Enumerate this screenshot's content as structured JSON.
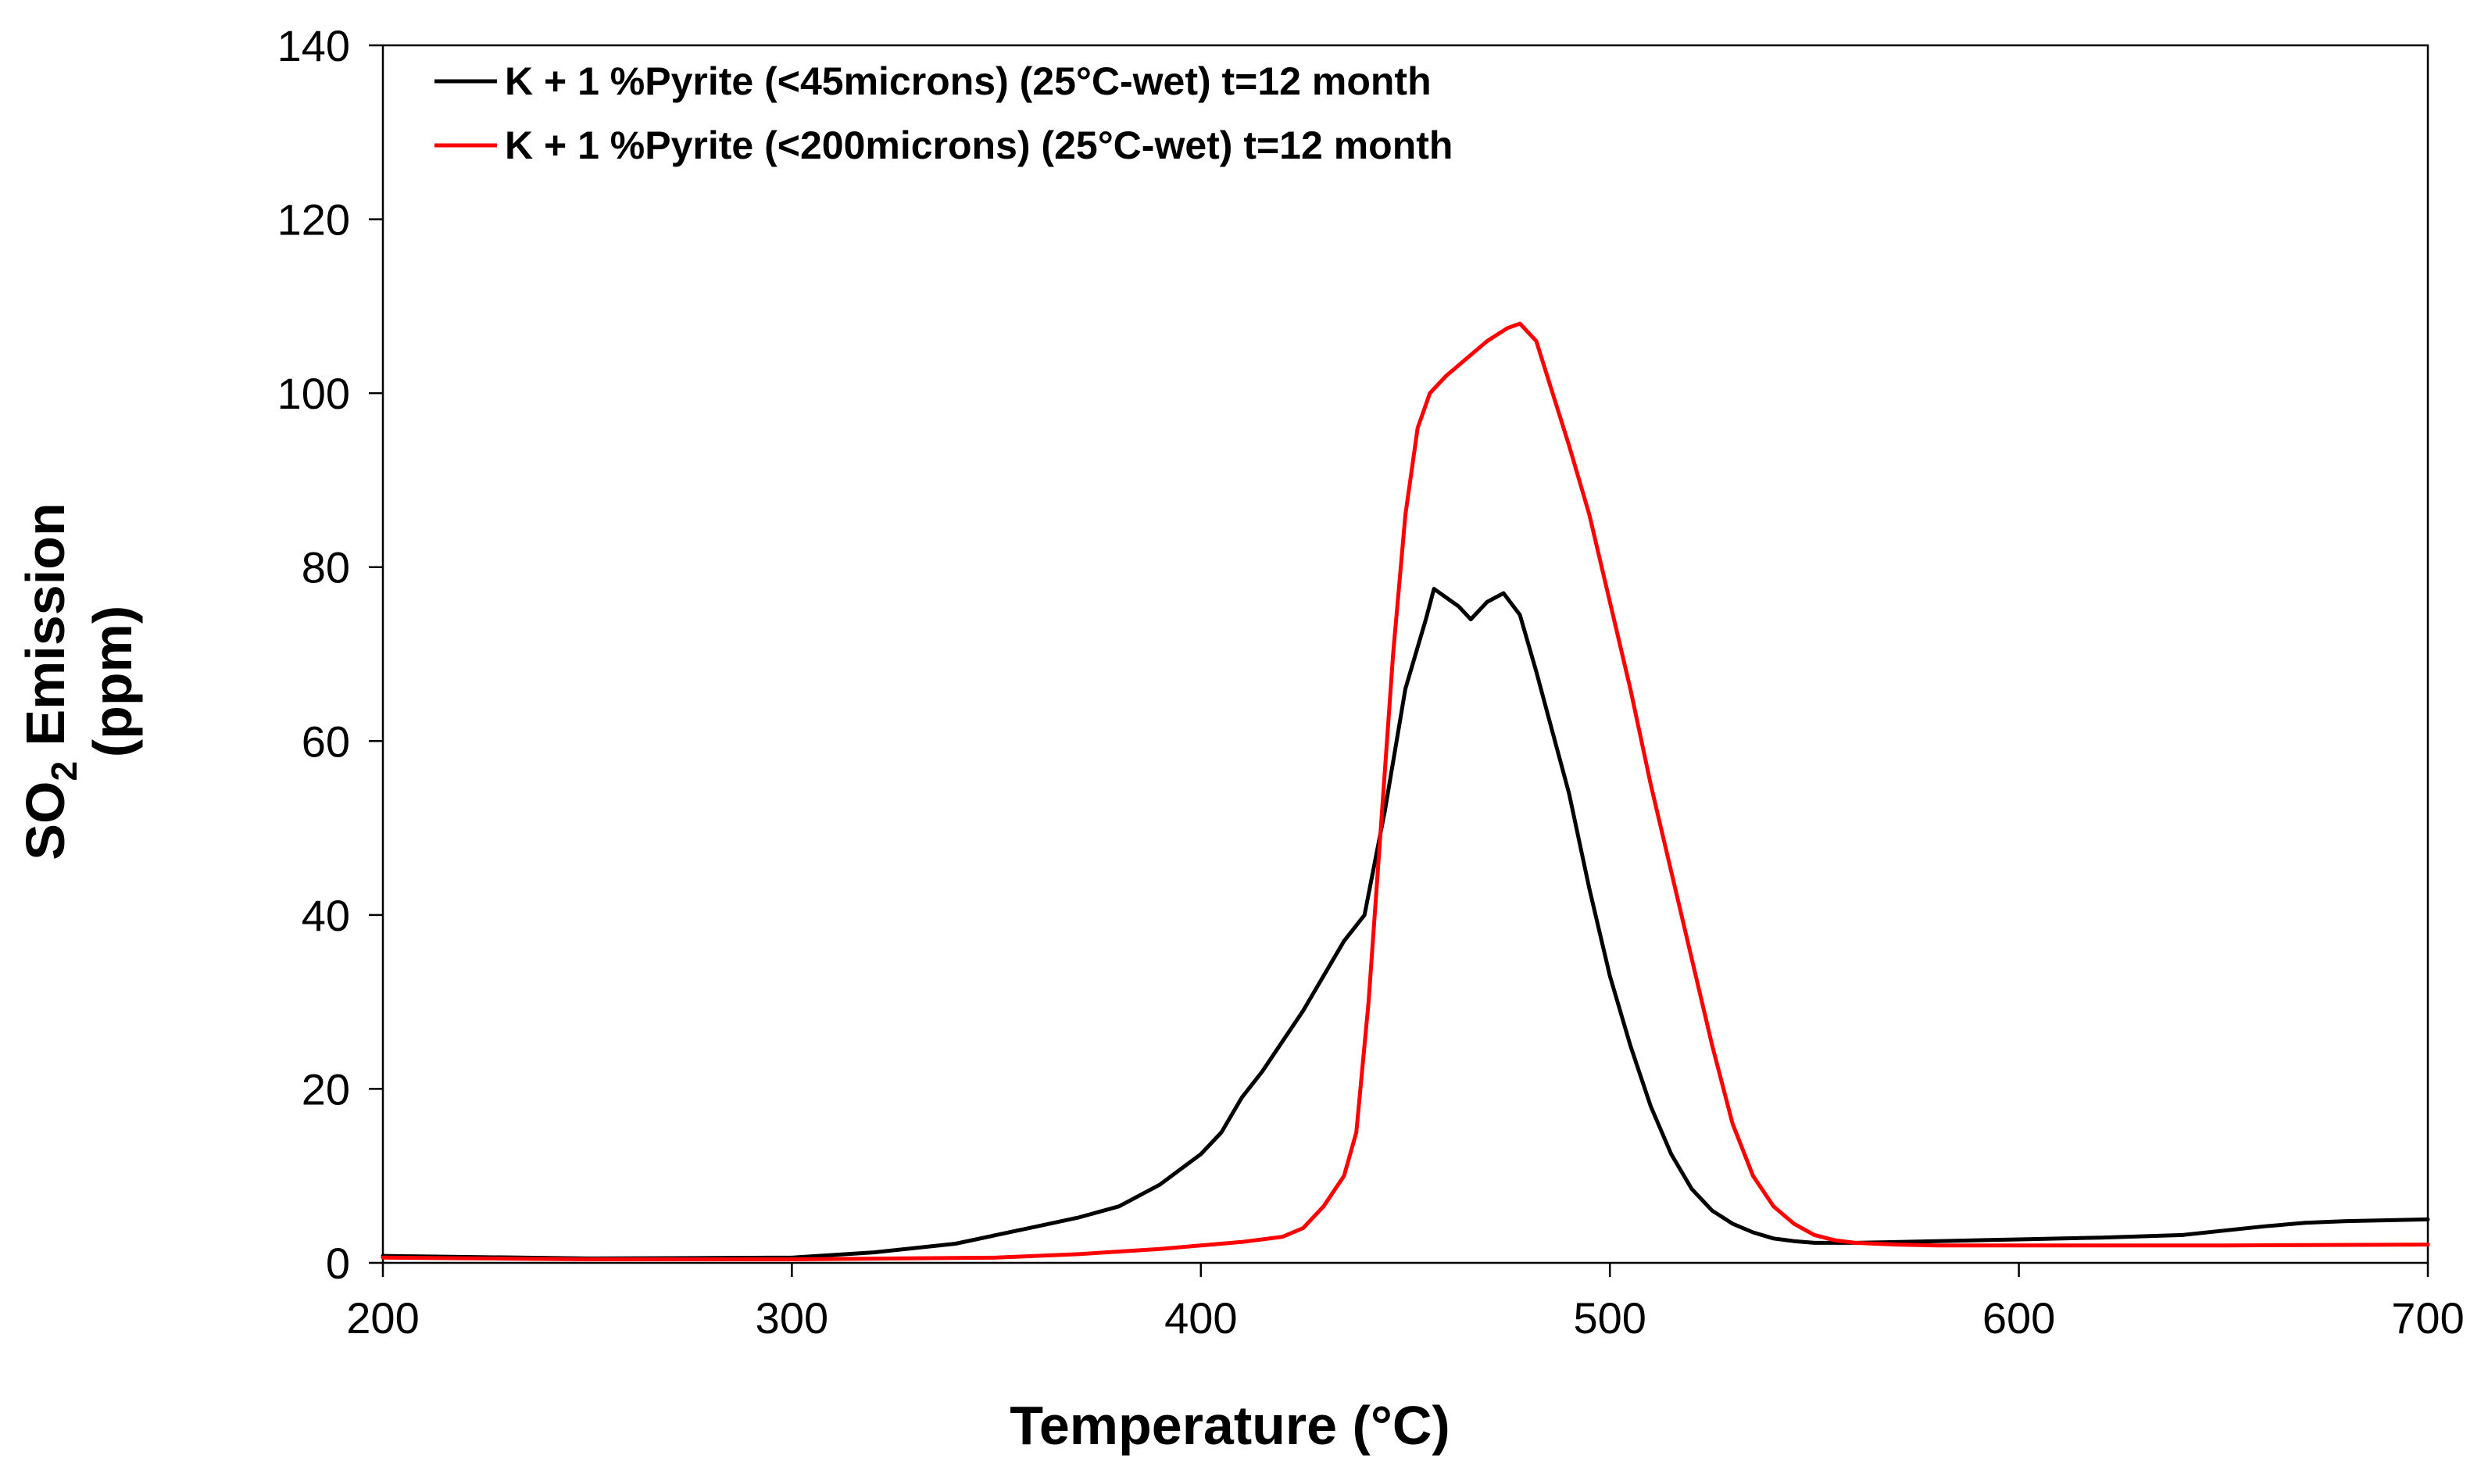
{
  "chart_data": {
    "type": "line",
    "title": "",
    "xlabel": "Temperature (°C)",
    "ylabel": {
      "line1_prefix": "SO",
      "line1_subscript": "2",
      "line1_suffix": " Emission",
      "line2": "(ppm)"
    },
    "xlim": [
      200,
      700
    ],
    "ylim": [
      0,
      140
    ],
    "xticks": [
      200,
      300,
      400,
      500,
      600,
      700
    ],
    "yticks": [
      0,
      20,
      40,
      60,
      80,
      100,
      120,
      140
    ],
    "grid": false,
    "legend_position": "top-left",
    "series": [
      {
        "name": "K + 1 %Pyrite (<45microns) (25°C-wet) t=12 month",
        "color": "#000000",
        "x": [
          200,
          250,
          300,
          320,
          340,
          360,
          370,
          380,
          390,
          400,
          405,
          410,
          415,
          420,
          425,
          430,
          435,
          440,
          445,
          450,
          455,
          457,
          460,
          463,
          466,
          470,
          474,
          478,
          482,
          486,
          490,
          495,
          500,
          505,
          510,
          515,
          520,
          525,
          530,
          535,
          540,
          545,
          550,
          560,
          580,
          600,
          620,
          640,
          650,
          660,
          670,
          680,
          690,
          700
        ],
        "y": [
          0.8,
          0.5,
          0.6,
          1.2,
          2.2,
          4.2,
          5.2,
          6.5,
          9,
          12.5,
          15,
          19,
          22,
          25.5,
          29,
          33,
          37,
          40,
          52,
          66,
          74,
          77.5,
          76.5,
          75.5,
          74,
          76,
          77,
          74.5,
          68,
          61,
          54,
          43,
          33,
          25,
          18,
          12.5,
          8.5,
          6,
          4.5,
          3.5,
          2.8,
          2.5,
          2.3,
          2.3,
          2.5,
          2.7,
          2.9,
          3.2,
          3.7,
          4.2,
          4.6,
          4.8,
          4.9,
          5.0
        ]
      },
      {
        "name": "K + 1 %Pyrite (<200microns) (25°C-wet) t=12 month",
        "color": "#ff0000",
        "x": [
          200,
          250,
          300,
          350,
          370,
          390,
          400,
          410,
          420,
          425,
          430,
          435,
          438,
          441,
          444,
          447,
          450,
          453,
          456,
          460,
          465,
          470,
          475,
          478,
          482,
          486,
          490,
          495,
          500,
          505,
          510,
          515,
          520,
          525,
          530,
          535,
          540,
          545,
          550,
          555,
          560,
          570,
          580,
          600,
          650,
          700
        ],
        "y": [
          0.6,
          0.4,
          0.4,
          0.6,
          1.0,
          1.6,
          2.0,
          2.4,
          3.0,
          4.0,
          6.5,
          10,
          15,
          30,
          50,
          70,
          86,
          96,
          100,
          102,
          104,
          106,
          107.5,
          108,
          106,
          100,
          94,
          86,
          76,
          66,
          55,
          45,
          35,
          25,
          16,
          10,
          6.5,
          4.5,
          3.2,
          2.6,
          2.3,
          2.1,
          2.0,
          2.0,
          2.0,
          2.1
        ]
      }
    ]
  }
}
